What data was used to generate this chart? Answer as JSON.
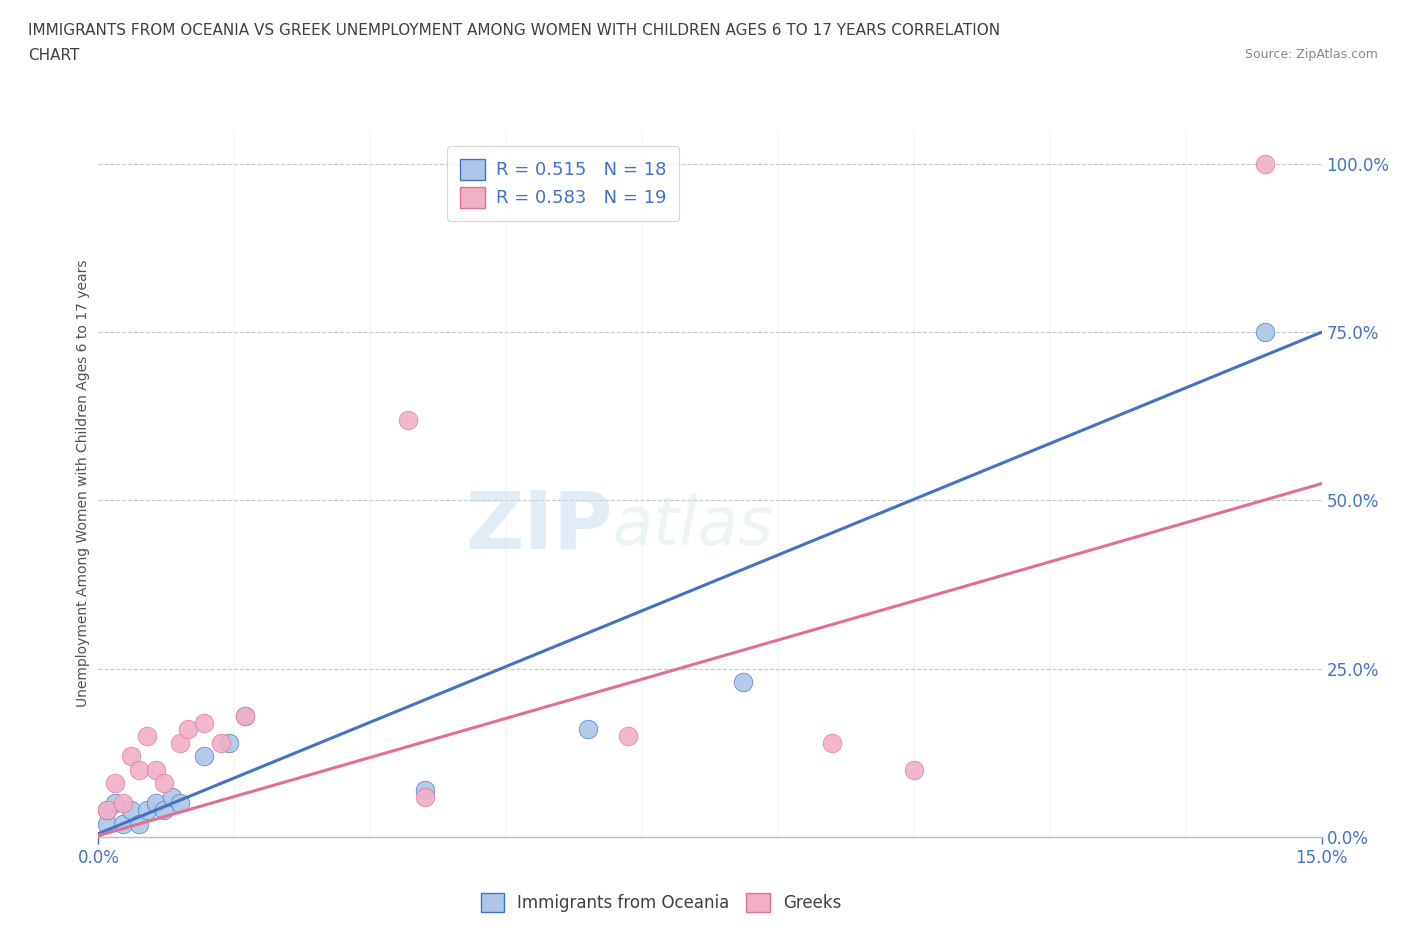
{
  "title_line1": "IMMIGRANTS FROM OCEANIA VS GREEK UNEMPLOYMENT AMONG WOMEN WITH CHILDREN AGES 6 TO 17 YEARS CORRELATION",
  "title_line2": "CHART",
  "source": "Source: ZipAtlas.com",
  "xlabel": "Immigrants from Oceania",
  "ylabel": "Unemployment Among Women with Children Ages 6 to 17 years",
  "xlim": [
    0.0,
    0.15
  ],
  "ylim": [
    0.0,
    1.05
  ],
  "ytick_labels": [
    "0.0%",
    "25.0%",
    "50.0%",
    "75.0%",
    "100.0%"
  ],
  "ytick_values": [
    0.0,
    0.25,
    0.5,
    0.75,
    1.0
  ],
  "xtick_labels": [
    "0.0%",
    "15.0%"
  ],
  "xtick_values": [
    0.0,
    0.15
  ],
  "blue_scatter_x": [
    0.001,
    0.001,
    0.002,
    0.003,
    0.004,
    0.005,
    0.006,
    0.007,
    0.008,
    0.009,
    0.01,
    0.013,
    0.016,
    0.018,
    0.04,
    0.06,
    0.079,
    0.143
  ],
  "blue_scatter_y": [
    0.02,
    0.04,
    0.05,
    0.02,
    0.04,
    0.02,
    0.04,
    0.05,
    0.04,
    0.06,
    0.05,
    0.12,
    0.14,
    0.18,
    0.07,
    0.16,
    0.23,
    0.75
  ],
  "pink_scatter_x": [
    0.001,
    0.002,
    0.003,
    0.004,
    0.005,
    0.006,
    0.007,
    0.008,
    0.01,
    0.011,
    0.013,
    0.015,
    0.018,
    0.038,
    0.04,
    0.065,
    0.09,
    0.1,
    0.143
  ],
  "pink_scatter_y": [
    0.04,
    0.08,
    0.05,
    0.12,
    0.1,
    0.15,
    0.1,
    0.08,
    0.14,
    0.16,
    0.17,
    0.14,
    0.18,
    0.62,
    0.06,
    0.15,
    0.14,
    0.1,
    1.0
  ],
  "blue_line_x": [
    0.0,
    0.15
  ],
  "blue_line_y": [
    0.005,
    0.75
  ],
  "pink_line_x": [
    0.0,
    0.15
  ],
  "pink_line_y": [
    0.002,
    0.525
  ],
  "blue_color": "#aec6e8",
  "pink_color": "#f2afc8",
  "blue_line_color": "#4472c4",
  "pink_line_color": "#e07090",
  "legend_r_blue": "R = 0.515",
  "legend_n_blue": "N = 18",
  "legend_r_pink": "R = 0.583",
  "legend_n_pink": "N = 19",
  "watermark_zip": "ZIP",
  "watermark_atlas": "atlas",
  "grid_color": "#c8c8c8",
  "dot_size": 180,
  "title_color": "#404040",
  "axis_label_color": "#505050",
  "tick_color": "#4472c4",
  "legend_text_color": "#4472c4",
  "source_color": "#888888"
}
